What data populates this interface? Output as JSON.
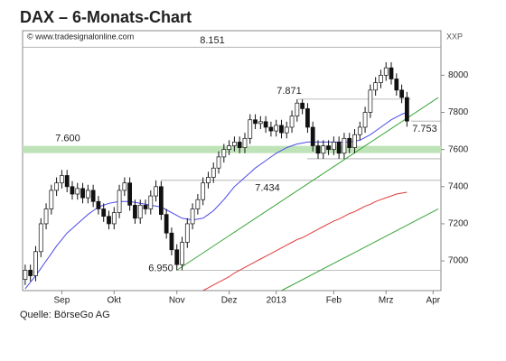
{
  "chart_data": {
    "type": "candlestick",
    "title": "DAX – 6-Monats-Chart",
    "watermark": "© www.tradesignalonline.com",
    "y_axis_label": "XXP",
    "source": "Quelle: BörseGo AG",
    "categories": [
      null,
      null,
      null,
      null,
      null,
      null,
      null,
      "Sep",
      null,
      null,
      null,
      null,
      null,
      null,
      null,
      null,
      null,
      "Okt",
      null,
      null,
      null,
      null,
      null,
      null,
      null,
      null,
      null,
      null,
      null,
      "Nov",
      null,
      null,
      null,
      null,
      null,
      null,
      null,
      null,
      null,
      "Dez",
      null,
      null,
      null,
      null,
      null,
      null,
      null,
      null,
      "2013",
      null,
      null,
      null,
      null,
      null,
      null,
      null,
      null,
      null,
      null,
      "Feb",
      null,
      null,
      null,
      null,
      null,
      null,
      null,
      null,
      null,
      "Mrz",
      null,
      null,
      null,
      null,
      null,
      null,
      null,
      null,
      "Apr",
      null
    ],
    "open": [
      6900,
      6950,
      6920,
      7050,
      7200,
      7280,
      7380,
      7420,
      7460,
      7400,
      7360,
      7390,
      7340,
      7380,
      7320,
      7280,
      7240,
      7200,
      7260,
      7380,
      7420,
      7300,
      7230,
      7300,
      7280,
      7350,
      7400,
      7250,
      7150,
      7060,
      6980,
      7100,
      7200,
      7280,
      7330,
      7420,
      7450,
      7500,
      7560,
      7600,
      7620,
      7640,
      7610,
      7660,
      7760,
      7740,
      7750,
      7720,
      7700,
      7730,
      7690,
      7720,
      7780,
      7850,
      7820,
      7720,
      7620,
      7580,
      7620,
      7600,
      7640,
      7580,
      7660,
      7610,
      7680,
      7720,
      7800,
      7920,
      7960,
      8000,
      8040,
      7980,
      7920,
      7880,
      null,
      null,
      null,
      null,
      null,
      null
    ],
    "high": [
      6980,
      6980,
      7080,
      7230,
      7310,
      7410,
      7450,
      7490,
      7490,
      7430,
      7420,
      7420,
      7410,
      7410,
      7350,
      7310,
      7270,
      7290,
      7410,
      7450,
      7450,
      7330,
      7330,
      7330,
      7380,
      7434,
      7430,
      7280,
      7180,
      7090,
      7130,
      7230,
      7310,
      7360,
      7450,
      7480,
      7530,
      7590,
      7630,
      7650,
      7670,
      7670,
      7690,
      7790,
      7790,
      7780,
      7780,
      7750,
      7760,
      7760,
      7750,
      7810,
      7871,
      7870,
      7850,
      7750,
      7650,
      7650,
      7650,
      7670,
      7670,
      7690,
      7690,
      7710,
      7750,
      7830,
      7950,
      7990,
      8030,
      8070,
      8070,
      8010,
      7950,
      7910,
      null,
      null,
      null,
      null,
      null,
      null
    ],
    "low": [
      6870,
      6890,
      6890,
      7020,
      7170,
      7250,
      7350,
      7390,
      7370,
      7330,
      7330,
      7310,
      7310,
      7290,
      7250,
      7210,
      7170,
      7170,
      7230,
      7350,
      7270,
      7200,
      7200,
      7250,
      7250,
      7320,
      7220,
      7120,
      7030,
      6950,
      6950,
      7070,
      7170,
      7250,
      7300,
      7390,
      7420,
      7470,
      7530,
      7570,
      7590,
      7580,
      7580,
      7630,
      7710,
      7710,
      7690,
      7670,
      7670,
      7660,
      7660,
      7690,
      7750,
      7790,
      7690,
      7590,
      7550,
      7550,
      7570,
      7570,
      7550,
      7550,
      7580,
      7580,
      7650,
      7690,
      7770,
      7890,
      7930,
      7970,
      7950,
      7890,
      7850,
      7723,
      null,
      null,
      null,
      null,
      null,
      null
    ],
    "close": [
      6950,
      6920,
      7050,
      7200,
      7280,
      7380,
      7420,
      7460,
      7400,
      7360,
      7390,
      7340,
      7380,
      7320,
      7280,
      7240,
      7200,
      7260,
      7380,
      7420,
      7300,
      7230,
      7300,
      7280,
      7350,
      7400,
      7250,
      7150,
      7060,
      6980,
      7100,
      7200,
      7280,
      7330,
      7420,
      7450,
      7500,
      7560,
      7600,
      7620,
      7640,
      7610,
      7660,
      7760,
      7740,
      7750,
      7720,
      7700,
      7730,
      7690,
      7720,
      7780,
      7850,
      7820,
      7720,
      7620,
      7580,
      7620,
      7600,
      7640,
      7580,
      7660,
      7610,
      7680,
      7720,
      7800,
      7920,
      7960,
      8000,
      8040,
      7980,
      7920,
      7880,
      7753,
      null,
      null,
      null,
      null,
      null,
      null
    ],
    "lines": [
      {
        "color": "#4a4ae8",
        "values": [
          6850,
          6885,
          6920,
          6960,
          7000,
          7040,
          7080,
          7115,
          7150,
          7175,
          7200,
          7225,
          7250,
          7270,
          7290,
          7300,
          7310,
          7315,
          7320,
          7320,
          7320,
          7315,
          7310,
          7305,
          7300,
          7295,
          7290,
          7275,
          7260,
          7245,
          7230,
          7225,
          7220,
          7225,
          7230,
          7250,
          7270,
          7300,
          7330,
          7365,
          7400,
          7425,
          7450,
          7475,
          7500,
          7520,
          7540,
          7560,
          7580,
          7595,
          7610,
          7620,
          7630,
          7635,
          7640,
          7640,
          7640,
          7640,
          7640,
          7640,
          7640,
          7640,
          7640,
          7645,
          7650,
          7665,
          7680,
          7700,
          7720,
          7740,
          7760,
          7775,
          7790,
          7800,
          null,
          null,
          null,
          null,
          null,
          null
        ]
      },
      {
        "color": "#e03a3a",
        "values": [
          null,
          null,
          null,
          null,
          null,
          null,
          null,
          null,
          null,
          null,
          null,
          null,
          null,
          null,
          null,
          null,
          null,
          null,
          null,
          null,
          null,
          null,
          null,
          null,
          null,
          null,
          null,
          null,
          null,
          null,
          null,
          null,
          null,
          null,
          6840,
          6855,
          6870,
          6885,
          6900,
          6915,
          6935,
          6950,
          6965,
          6980,
          6995,
          7010,
          7025,
          7040,
          7055,
          7070,
          7085,
          7100,
          7115,
          7125,
          7140,
          7155,
          7170,
          7185,
          7200,
          7215,
          7225,
          7240,
          7255,
          7265,
          7280,
          7295,
          7305,
          7320,
          7330,
          7340,
          7350,
          7360,
          7365,
          7370,
          null,
          null,
          null,
          null,
          null,
          null
        ]
      }
    ],
    "trendlines": [
      {
        "color": "#3aa53a",
        "values": [
          6950,
          7880
        ]
      },
      {
        "color": "#3aa53a",
        "values": [
          6840,
          7280
        ]
      }
    ],
    "levels": [
      {
        "value": 8151,
        "label": "8.151"
      },
      {
        "value": 7871,
        "label": "7.871"
      },
      {
        "value": 7753,
        "label": "7.753"
      },
      {
        "value": 7600,
        "label": "7.600"
      },
      {
        "value": 7434,
        "label": "7.434"
      },
      {
        "value": 6950,
        "label": "6.950"
      },
      {
        "value": 7550
      }
    ],
    "ylim": [
      6840,
      8240
    ],
    "yticks": [
      7000,
      7200,
      7400,
      7600,
      7800,
      8000
    ],
    "grid": false
  }
}
